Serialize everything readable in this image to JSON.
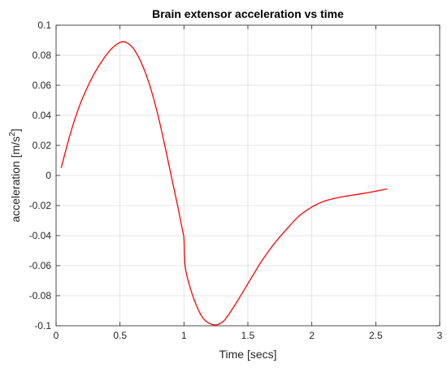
{
  "chart_data": {
    "type": "line",
    "title": "Brain extensor acceleration vs time",
    "xlabel": "Time [secs]",
    "ylabel": "acceleration [m/s",
    "ylabel_superscript": "2",
    "ylabel_suffix": "]",
    "xlim": [
      0,
      3
    ],
    "ylim": [
      -0.1,
      0.1
    ],
    "x_ticks": [
      "0",
      "0.5",
      "1",
      "1.5",
      "2",
      "2.5",
      "3"
    ],
    "y_ticks": [
      "0.1",
      "0.08",
      "0.06",
      "0.04",
      "0.02",
      "0",
      "-0.02",
      "-0.04",
      "-0.06",
      "-0.08",
      "-0.1"
    ],
    "grid": true,
    "series": [
      {
        "color": "#ff0000",
        "x": [
          0.04,
          0.08,
          0.13,
          0.2,
          0.3,
          0.4,
          0.47,
          0.52,
          0.56,
          0.6,
          0.65,
          0.7,
          0.75,
          0.8,
          0.85,
          0.9,
          0.95,
          0.99,
          1.0,
          1.01,
          1.05,
          1.1,
          1.15,
          1.2,
          1.25,
          1.28,
          1.32,
          1.4,
          1.5,
          1.6,
          1.7,
          1.8,
          1.9,
          2.0,
          2.1,
          2.25,
          2.4,
          2.59
        ],
        "y": [
          0.005,
          0.018,
          0.033,
          0.05,
          0.068,
          0.081,
          0.087,
          0.089,
          0.088,
          0.085,
          0.078,
          0.068,
          0.055,
          0.039,
          0.02,
          0.0,
          -0.02,
          -0.037,
          -0.042,
          -0.061,
          -0.075,
          -0.087,
          -0.095,
          -0.0985,
          -0.0995,
          -0.0985,
          -0.096,
          -0.086,
          -0.072,
          -0.058,
          -0.046,
          -0.036,
          -0.027,
          -0.021,
          -0.017,
          -0.014,
          -0.012,
          -0.009
        ]
      }
    ]
  }
}
